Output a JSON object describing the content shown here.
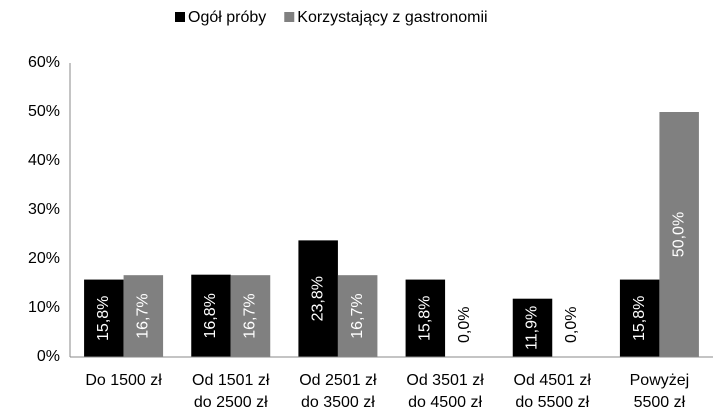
{
  "chart_data": {
    "type": "bar",
    "categories": [
      [
        "Do 1500 zł"
      ],
      [
        "Od 1501 zł",
        "do 2500 zł"
      ],
      [
        "Od 2501 zł",
        "do 3500 zł"
      ],
      [
        "Od 3501 zł",
        "do 4500 zł"
      ],
      [
        "Od 4501 zł",
        "do 5500 zł"
      ],
      [
        "Powyżej",
        "5500 zł"
      ]
    ],
    "series": [
      {
        "name": "Ogół próby",
        "color": "#000000",
        "values": [
          15.8,
          16.8,
          23.8,
          15.8,
          11.9,
          15.8
        ],
        "value_labels": [
          "15,8%",
          "16,8%",
          "23,8%",
          "15,8%",
          "11,9%",
          "15,8%"
        ]
      },
      {
        "name": "Korzystający z gastronomii",
        "color": "#808080",
        "values": [
          16.7,
          16.7,
          16.7,
          0,
          0,
          50
        ],
        "value_labels": [
          "16,7%",
          "16,7%",
          "16,7%",
          "0,0%",
          "0,0%",
          "50,0%"
        ]
      }
    ],
    "ylim": [
      0,
      60
    ],
    "yticks": [
      {
        "value": 0,
        "label": "0%"
      },
      {
        "value": 10,
        "label": "10%"
      },
      {
        "value": 20,
        "label": "20%"
      },
      {
        "value": 30,
        "label": "30%"
      },
      {
        "value": 40,
        "label": "40%"
      },
      {
        "value": 50,
        "label": "50%"
      },
      {
        "value": 60,
        "label": "60%"
      }
    ],
    "legend": "top"
  }
}
